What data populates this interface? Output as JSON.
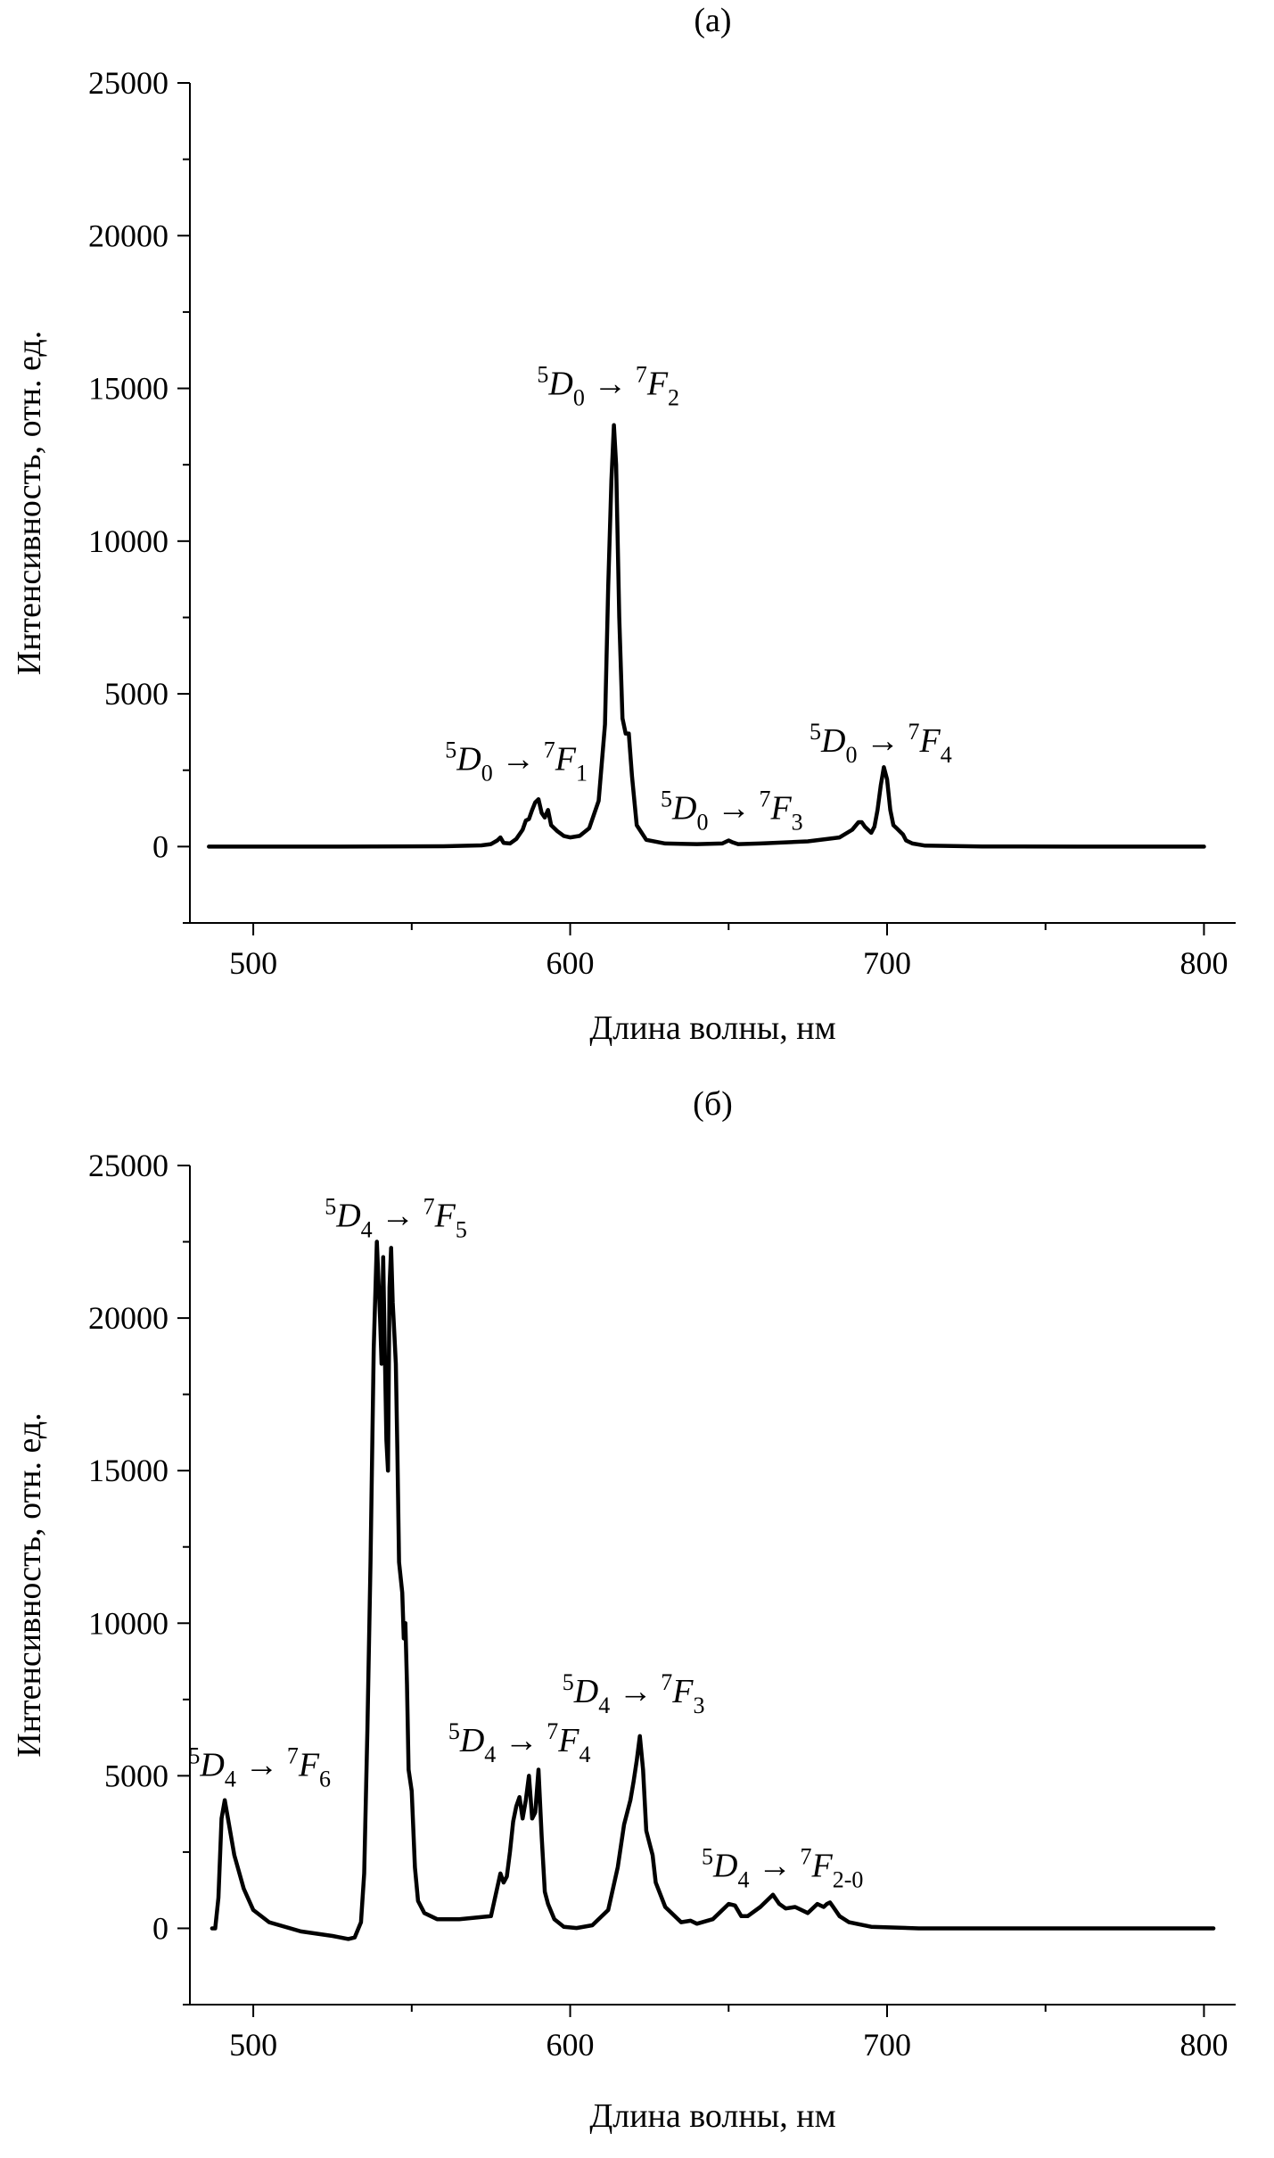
{
  "chart_data": [
    {
      "type": "line",
      "panel_label": "(a)",
      "xlabel": "Длина волны, нм",
      "ylabel": "Интенсивность, отн. ед.",
      "xlim": [
        480,
        810
      ],
      "ylim": [
        -2500,
        25000
      ],
      "xticks": [
        500,
        600,
        700,
        800
      ],
      "yticks": [
        0,
        5000,
        10000,
        15000,
        20000,
        25000
      ],
      "grid": false,
      "annotations": [
        {
          "sup1": "5",
          "main1": "D",
          "sub1": "0",
          "arrow": " → ",
          "sup2": "7",
          "main2": "F",
          "sub2": "1",
          "x": 583,
          "y": 2500
        },
        {
          "sup1": "5",
          "main1": "D",
          "sub1": "0",
          "arrow": " → ",
          "sup2": "7",
          "main2": "F",
          "sub2": "2",
          "x": 612,
          "y": 14800
        },
        {
          "sup1": "5",
          "main1": "D",
          "sub1": "0",
          "arrow": " → ",
          "sup2": "7",
          "main2": "F",
          "sub2": "3",
          "x": 651,
          "y": 900
        },
        {
          "sup1": "5",
          "main1": "D",
          "sub1": "0",
          "arrow": " → ",
          "sup2": "7",
          "main2": "F",
          "sub2": "4",
          "x": 698,
          "y": 3100
        }
      ],
      "series": [
        {
          "x": [
            486,
            520,
            560,
            572,
            575,
            577,
            578,
            579,
            581,
            583,
            585,
            586,
            587,
            588,
            589,
            590,
            591,
            592,
            593,
            594,
            596,
            598,
            600,
            603,
            606,
            609,
            611,
            612,
            613,
            613.8,
            614.5,
            615.5,
            616.5,
            617.5,
            618.5,
            619.5,
            621,
            624,
            630,
            640,
            648,
            650,
            651,
            653,
            660,
            675,
            685,
            689,
            691,
            692,
            693,
            695,
            696,
            697,
            698,
            699,
            700,
            701,
            702,
            703,
            704,
            705,
            706,
            708,
            712,
            730,
            760,
            800
          ],
          "y": [
            0,
            0,
            10,
            40,
            80,
            200,
            300,
            120,
            100,
            250,
            550,
            850,
            900,
            1200,
            1450,
            1550,
            1100,
            950,
            1200,
            700,
            500,
            350,
            300,
            350,
            600,
            1500,
            4000,
            8500,
            12000,
            13800,
            12500,
            7500,
            4200,
            3700,
            3700,
            2300,
            700,
            220,
            100,
            80,
            100,
            200,
            150,
            80,
            100,
            170,
            300,
            550,
            800,
            800,
            650,
            450,
            650,
            1200,
            2000,
            2600,
            2200,
            1200,
            700,
            600,
            500,
            400,
            200,
            100,
            30,
            5,
            0,
            0
          ]
        }
      ]
    },
    {
      "type": "line",
      "panel_label": "(б)",
      "xlabel": "Длина волны, нм",
      "ylabel": "Интенсивность, отн. ед.",
      "xlim": [
        480,
        810
      ],
      "ylim": [
        -2500,
        25000
      ],
      "xticks": [
        500,
        600,
        700,
        800
      ],
      "yticks": [
        0,
        5000,
        10000,
        15000,
        20000,
        25000
      ],
      "grid": false,
      "annotations": [
        {
          "sup1": "5",
          "main1": "D",
          "sub1": "4",
          "arrow": " → ",
          "sup2": "7",
          "main2": "F",
          "sub2": "6",
          "x": 502,
          "y": 5000
        },
        {
          "sup1": "5",
          "main1": "D",
          "sub1": "4",
          "arrow": " → ",
          "sup2": "7",
          "main2": "F",
          "sub2": "5",
          "x": 545,
          "y": 23000
        },
        {
          "sup1": "5",
          "main1": "D",
          "sub1": "4",
          "arrow": " → ",
          "sup2": "7",
          "main2": "F",
          "sub2": "4",
          "x": 584,
          "y": 5800
        },
        {
          "sup1": "5",
          "main1": "D",
          "sub1": "4",
          "arrow": " → ",
          "sup2": "7",
          "main2": "F",
          "sub2": "3",
          "x": 620,
          "y": 7400
        },
        {
          "sup1": "5",
          "main1": "D",
          "sub1": "4",
          "arrow": " → ",
          "sup2": "7",
          "main2": "F",
          "sub2": "2-0",
          "x": 667,
          "y": 1700
        }
      ],
      "series": [
        {
          "x": [
            487,
            488,
            489,
            490,
            491,
            492,
            494,
            497,
            500,
            505,
            515,
            525,
            530,
            532,
            534,
            535,
            536,
            537,
            538,
            539,
            540,
            540.5,
            541,
            541.5,
            542,
            542.5,
            543,
            543.5,
            544,
            544.5,
            545,
            545.5,
            546,
            547,
            547.5,
            548,
            548.5,
            549,
            550,
            551,
            552,
            554,
            558,
            565,
            575,
            578,
            579,
            580,
            581,
            582,
            583,
            584,
            585,
            586,
            587,
            588,
            589,
            590,
            591,
            592,
            593,
            595,
            598,
            602,
            607,
            612,
            615,
            617,
            619,
            620,
            621,
            622,
            623,
            624,
            625,
            626,
            627,
            630,
            635,
            638,
            640,
            645,
            650,
            652,
            654,
            656,
            660,
            664,
            666,
            668,
            671,
            675,
            678,
            680,
            681,
            682,
            683,
            685,
            688,
            695,
            710,
            760,
            803
          ],
          "y": [
            0,
            0,
            1000,
            3600,
            4200,
            3600,
            2400,
            1300,
            600,
            200,
            -100,
            -250,
            -350,
            -300,
            200,
            1800,
            6500,
            12000,
            19000,
            22500,
            20000,
            18500,
            22000,
            19000,
            16000,
            15000,
            21000,
            22300,
            20500,
            19500,
            18500,
            15500,
            12000,
            11000,
            9500,
            10000,
            8000,
            5200,
            4500,
            2000,
            900,
            500,
            300,
            300,
            400,
            1800,
            1500,
            1700,
            2500,
            3500,
            4000,
            4300,
            3600,
            4200,
            5000,
            3600,
            3800,
            5200,
            3000,
            1200,
            800,
            300,
            50,
            10,
            100,
            600,
            2000,
            3400,
            4200,
            4800,
            5500,
            6300,
            5200,
            3200,
            2800,
            2400,
            1500,
            700,
            200,
            250,
            150,
            300,
            800,
            750,
            400,
            400,
            700,
            1100,
            800,
            650,
            700,
            500,
            800,
            700,
            800,
            850,
            700,
            400,
            200,
            50,
            0,
            0,
            0
          ]
        }
      ]
    }
  ]
}
